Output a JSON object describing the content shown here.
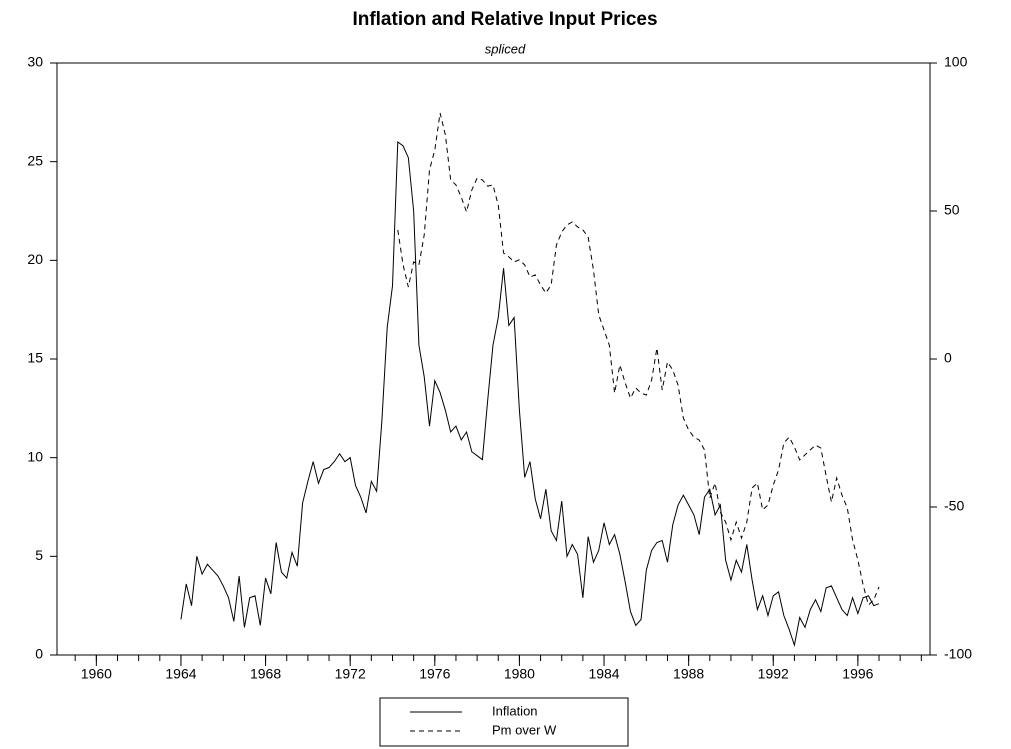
{
  "chart_data": {
    "type": "line",
    "title": "Inflation and Relative Input Prices",
    "subtitle": "spliced",
    "x": [
      1964,
      1964.25,
      1964.5,
      1964.75,
      1965,
      1965.25,
      1965.5,
      1965.75,
      1966,
      1966.25,
      1966.5,
      1966.75,
      1967,
      1967.25,
      1967.5,
      1967.75,
      1968,
      1968.25,
      1968.5,
      1968.75,
      1969,
      1969.25,
      1969.5,
      1969.75,
      1970,
      1970.25,
      1970.5,
      1970.75,
      1971,
      1971.25,
      1971.5,
      1971.75,
      1972,
      1972.25,
      1972.5,
      1972.75,
      1973,
      1973.25,
      1973.5,
      1973.75,
      1974,
      1974.25,
      1974.5,
      1974.75,
      1975,
      1975.25,
      1975.5,
      1975.75,
      1976,
      1976.25,
      1976.5,
      1976.75,
      1977,
      1977.25,
      1977.5,
      1977.75,
      1978,
      1978.25,
      1978.5,
      1978.75,
      1979,
      1979.25,
      1979.5,
      1979.75,
      1980,
      1980.25,
      1980.5,
      1980.75,
      1981,
      1981.25,
      1981.5,
      1981.75,
      1982,
      1982.25,
      1982.5,
      1982.75,
      1983,
      1983.25,
      1983.5,
      1983.75,
      1984,
      1984.25,
      1984.5,
      1984.75,
      1985,
      1985.25,
      1985.5,
      1985.75,
      1986,
      1986.25,
      1986.5,
      1986.75,
      1987,
      1987.25,
      1987.5,
      1987.75,
      1988,
      1988.25,
      1988.5,
      1988.75,
      1989,
      1989.25,
      1989.5,
      1989.75,
      1990,
      1990.25,
      1990.5,
      1990.75,
      1991,
      1991.25,
      1991.5,
      1991.75,
      1992,
      1992.25,
      1992.5,
      1992.75,
      1993,
      1993.25,
      1993.5,
      1993.75,
      1994,
      1994.25,
      1994.5,
      1994.75,
      1995,
      1995.25,
      1995.5,
      1995.75,
      1996,
      1996.25,
      1996.5,
      1996.75,
      1997
    ],
    "series": [
      {
        "name": "Inflation",
        "color": "#000000",
        "linestyle": "solid",
        "axis": "y",
        "values": [
          1.8,
          3.6,
          2.5,
          5.0,
          4.1,
          4.6,
          4.3,
          4.0,
          3.5,
          2.9,
          1.7,
          4.0,
          1.4,
          2.9,
          3.0,
          1.5,
          3.9,
          3.1,
          5.7,
          4.2,
          3.9,
          5.2,
          4.5,
          7.7,
          8.8,
          9.8,
          8.7,
          9.4,
          9.5,
          9.8,
          10.2,
          9.8,
          10.0,
          8.6,
          8.0,
          7.2,
          8.8,
          8.3,
          11.9,
          16.6,
          18.7,
          26.0,
          25.8,
          25.2,
          22.5,
          15.7,
          14.1,
          11.6,
          13.9,
          13.3,
          12.4,
          11.3,
          11.6,
          10.9,
          11.3,
          10.3,
          10.1,
          9.9,
          12.9,
          15.7,
          17.1,
          19.6,
          16.7,
          17.1,
          12.4,
          9.0,
          9.8,
          7.9,
          6.9,
          8.4,
          6.3,
          5.8,
          7.8,
          5.0,
          5.6,
          5.1,
          2.9,
          6.0,
          4.7,
          5.3,
          6.7,
          5.6,
          6.1,
          5.1,
          3.7,
          2.2,
          1.5,
          1.8,
          4.3,
          5.3,
          5.7,
          5.8,
          4.7,
          6.6,
          7.6,
          8.1,
          7.6,
          7.1,
          6.1,
          8.0,
          8.4,
          7.1,
          7.6,
          4.8,
          3.8,
          4.8,
          4.2,
          5.6,
          3.8,
          2.3,
          3.0,
          2.0,
          3.0,
          3.2,
          2.0,
          1.3,
          0.5,
          1.9,
          1.4,
          2.3,
          2.8,
          2.2,
          3.4,
          3.5,
          2.9,
          2.3,
          2.0,
          2.9,
          2.1,
          2.9,
          3.0,
          2.5,
          2.6
        ]
      },
      {
        "name": "Pm over W",
        "color": "#000000",
        "linestyle": "dashed",
        "axis": "y2",
        "values": [
          null,
          null,
          null,
          null,
          null,
          null,
          null,
          null,
          null,
          null,
          null,
          null,
          null,
          null,
          null,
          null,
          null,
          null,
          null,
          null,
          null,
          null,
          null,
          null,
          null,
          null,
          null,
          null,
          null,
          null,
          null,
          null,
          null,
          null,
          null,
          null,
          null,
          null,
          null,
          null,
          null,
          43.6,
          31.8,
          24.3,
          32.8,
          31.8,
          41.9,
          63.9,
          70.6,
          83.1,
          75.7,
          60.5,
          58.8,
          54.7,
          49.7,
          57.1,
          61.1,
          60.5,
          58.4,
          58.8,
          52.0,
          35.8,
          34.5,
          32.8,
          33.5,
          31.8,
          27.7,
          28.4,
          25.0,
          22.3,
          25.0,
          38.5,
          42.9,
          45.3,
          46.3,
          44.6,
          43.6,
          41.2,
          30.1,
          14.9,
          9.8,
          4.7,
          -11.5,
          -2.0,
          -8.1,
          -13.2,
          -9.8,
          -11.5,
          -12.2,
          -7.1,
          3.7,
          -10.5,
          -1.0,
          -3.7,
          -8.8,
          -19.9,
          -24.0,
          -26.4,
          -27.4,
          -30.7,
          -47.0,
          -41.9,
          -51.7,
          -55.1,
          -61.1,
          -55.1,
          -60.5,
          -55.1,
          -43.6,
          -41.9,
          -51.0,
          -49.3,
          -42.6,
          -37.5,
          -28.4,
          -26.4,
          -29.7,
          -34.1,
          -32.4,
          -30.7,
          -29.1,
          -30.1,
          -39.5,
          -48.3,
          -40.2,
          -46.0,
          -50.3,
          -61.1,
          -67.9,
          -76.4,
          -83.1,
          -81.4,
          -77.0
        ]
      }
    ],
    "xlim": [
      1958.14,
      1999.41
    ],
    "xticks": [
      1960,
      1964,
      1968,
      1972,
      1976,
      1980,
      1984,
      1988,
      1992,
      1996
    ],
    "xminorticks": [
      1959,
      1960,
      1961,
      1962,
      1963,
      1964,
      1965,
      1966,
      1967,
      1968,
      1969,
      1970,
      1971,
      1972,
      1973,
      1974,
      1975,
      1976,
      1977,
      1978,
      1979,
      1980,
      1981,
      1982,
      1983,
      1984,
      1985,
      1986,
      1987,
      1988,
      1989,
      1990,
      1991,
      1992,
      1993,
      1994,
      1995,
      1996,
      1997,
      1998,
      1999
    ],
    "ylim": [
      0,
      30
    ],
    "yticks": [
      0,
      5,
      10,
      15,
      20,
      25,
      30
    ],
    "y2lim": [
      -100,
      100
    ],
    "y2ticks": [
      -100,
      -50,
      0,
      50,
      100
    ],
    "grid": false,
    "legend": "bottom"
  }
}
